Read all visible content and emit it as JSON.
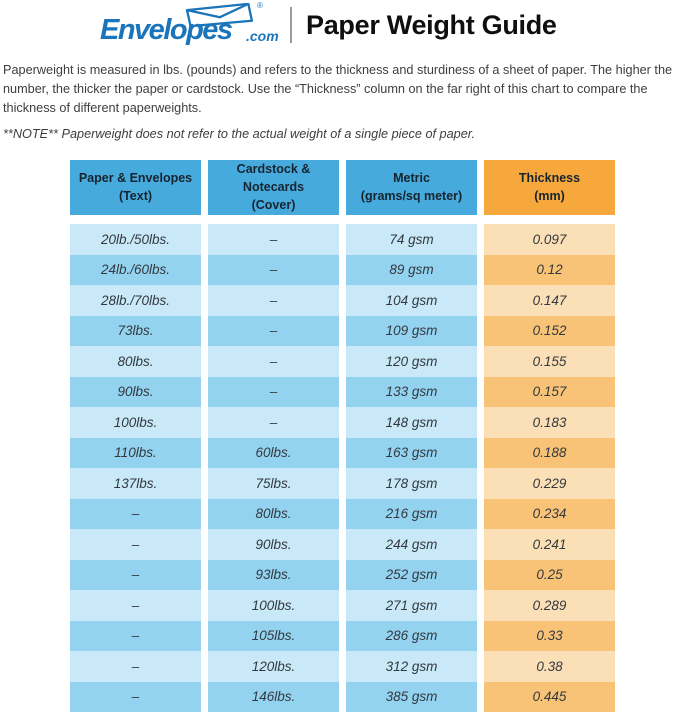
{
  "header": {
    "logo": {
      "brand": "Envelopes",
      "tld": ".com",
      "registered": "®",
      "icon": "envelope-icon"
    },
    "title": "Paper Weight Guide"
  },
  "intro": {
    "paragraph": "Paperweight is measured in lbs. (pounds) and refers to the thickness and sturdiness of a sheet of paper. The higher the number, the thicker the paper or cardstock. Use the “Thickness” column on the far right of this chart to compare the thickness of different paperweights.",
    "note": "**NOTE** Paperweight does not refer to the actual weight of a single piece of paper."
  },
  "table": {
    "columns": [
      {
        "line1": "Paper & Envelopes",
        "line2": "(Text)"
      },
      {
        "line1": "Cardstock & Notecards",
        "line2": "(Cover)"
      },
      {
        "line1": "Metric",
        "line2": "(grams/sq meter)"
      },
      {
        "line1": "Thickness",
        "line2": "(mm)"
      }
    ],
    "rows": [
      [
        "20lb./50lbs.",
        "–",
        "74 gsm",
        "0.097"
      ],
      [
        "24lb./60lbs.",
        "–",
        "89 gsm",
        "0.12"
      ],
      [
        "28lb./70lbs.",
        "–",
        "104 gsm",
        "0.147"
      ],
      [
        "73lbs.",
        "–",
        "109 gsm",
        "0.152"
      ],
      [
        "80lbs.",
        "–",
        "120 gsm",
        "0.155"
      ],
      [
        "90lbs.",
        "–",
        "133 gsm",
        "0.157"
      ],
      [
        "100lbs.",
        "–",
        "148 gsm",
        "0.183"
      ],
      [
        "110lbs.",
        "60lbs.",
        "163 gsm",
        "0.188"
      ],
      [
        "137lbs.",
        "75lbs.",
        "178 gsm",
        "0.229"
      ],
      [
        "–",
        "80lbs.",
        "216 gsm",
        "0.234"
      ],
      [
        "–",
        "90lbs.",
        "244 gsm",
        "0.241"
      ],
      [
        "–",
        "93lbs.",
        "252 gsm",
        "0.25"
      ],
      [
        "–",
        "100lbs.",
        "271 gsm",
        "0.289"
      ],
      [
        "–",
        "105lbs.",
        "286 gsm",
        "0.33"
      ],
      [
        "–",
        "120lbs.",
        "312 gsm",
        "0.38"
      ],
      [
        "–",
        "146lbs.",
        "385 gsm",
        "0.445"
      ]
    ]
  },
  "colors": {
    "logo_blue": "#1B75BB",
    "header_blue": "#47AADC",
    "header_orange": "#F6A83D",
    "row_light_blue": "#C9E8F8",
    "row_dark_blue": "#94D3F0",
    "cell_light_orange": "#FBDFB6",
    "cell_dark_orange": "#F9C377",
    "header_text": "#16242F",
    "body_text": "#3E3E3E",
    "cell_text": "#33393F",
    "title_color": "#0F0F0F",
    "divider_color": "#9B9B9B"
  }
}
